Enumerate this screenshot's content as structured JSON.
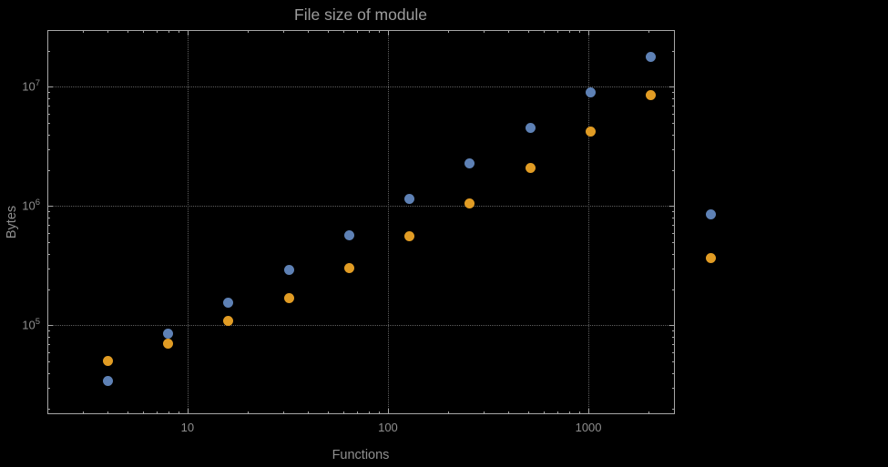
{
  "chart_data": {
    "type": "scatter",
    "title": "File size of module",
    "xlabel": "Functions",
    "ylabel": "Bytes",
    "x_scale": "log",
    "y_scale": "log",
    "x_range": [
      2,
      2700
    ],
    "y_range": [
      18000,
      30000000
    ],
    "grid": true,
    "legend": "none",
    "x_major_ticks": [
      {
        "value": 10,
        "label": "10"
      },
      {
        "value": 100,
        "label": "100"
      },
      {
        "value": 1000,
        "label": "1000"
      }
    ],
    "y_major_ticks": [
      {
        "value": 100000,
        "label": "10^5"
      },
      {
        "value": 1000000,
        "label": "10^6"
      },
      {
        "value": 10000000,
        "label": "10^7"
      }
    ],
    "series": [
      {
        "name": "blue",
        "color": "#5e81b5",
        "points": [
          [
            4,
            34000
          ],
          [
            8,
            85000
          ],
          [
            16,
            155000
          ],
          [
            32,
            290000
          ],
          [
            64,
            570000
          ],
          [
            128,
            1150000
          ],
          [
            256,
            2300000
          ],
          [
            512,
            4500000
          ],
          [
            1024,
            9000000
          ],
          [
            2048,
            18000000
          ],
          [
            4096,
            850000
          ]
        ]
      },
      {
        "name": "orange",
        "color": "#e19c24",
        "points": [
          [
            4,
            50000
          ],
          [
            8,
            70000
          ],
          [
            16,
            110000
          ],
          [
            32,
            170000
          ],
          [
            64,
            300000
          ],
          [
            128,
            560000
          ],
          [
            256,
            1050000
          ],
          [
            512,
            2100000
          ],
          [
            1024,
            4200000
          ],
          [
            2048,
            8500000
          ],
          [
            4096,
            370000
          ]
        ]
      }
    ],
    "colors": {
      "background": "#000000",
      "frame": "#a6a6a6",
      "grid": "#5f5f5f",
      "tick_text": "#8f8f8f",
      "title_text": "#9c9c9c"
    }
  }
}
